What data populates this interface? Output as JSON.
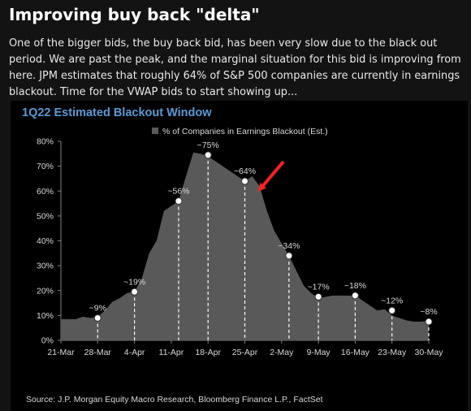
{
  "post": {
    "headline": "Improving buy back \"delta\"",
    "body": "One of the bigger bids, the buy back bid, has been very slow due to the black out period. We are past the peak, and the marginal situation for this bid is improving from here. JPM estimates that roughly 64% of S&P 500 companies are currently in earnings blackout. Time for the VWAP bids to start showing up..."
  },
  "chart_data": {
    "type": "area",
    "title": "1Q22 Estimated Blackout Window",
    "xlabel": "",
    "ylabel": "",
    "ylim": [
      0,
      80
    ],
    "grid": false,
    "legend_position": "top-center",
    "source": "Source: J.P. Morgan Equity Macro Research, Bloomberg Finance L.P., FactSet",
    "series": [
      {
        "name": "% of Companies in Earnings Blackout (Est.)",
        "color": "#595959",
        "values": [
          8.5,
          8.5,
          8.5,
          9.5,
          9.0,
          9.5,
          12,
          15.5,
          17,
          19,
          19.5,
          25,
          35,
          40,
          52,
          54,
          56,
          66,
          75.5,
          75,
          74,
          72,
          70,
          68,
          66,
          64,
          66,
          62,
          52,
          44,
          39,
          34,
          28,
          22,
          19,
          17,
          17.5,
          18,
          18,
          18,
          18,
          16,
          14,
          12,
          12.5,
          10,
          9,
          8,
          7.5,
          7.5,
          8
        ]
      }
    ],
    "x_tick_labels": [
      "21-Mar",
      "28-Mar",
      "4-Apr",
      "11-Apr",
      "18-Apr",
      "25-Apr",
      "2-May",
      "9-May",
      "16-May",
      "23-May",
      "30-May"
    ],
    "y_tick_labels": [
      "0%",
      "10%",
      "20%",
      "30%",
      "40%",
      "50%",
      "60%",
      "70%",
      "80%"
    ],
    "y_ticks": [
      0,
      10,
      20,
      30,
      40,
      50,
      60,
      70,
      80
    ],
    "markers": [
      {
        "label": "~9%",
        "index": 5,
        "value": 9
      },
      {
        "label": "~19%",
        "index": 10,
        "value": 19.5
      },
      {
        "label": "~56%",
        "index": 16,
        "value": 56
      },
      {
        "label": "~75%",
        "index": 20,
        "value": 74.5
      },
      {
        "label": "~64%",
        "index": 25,
        "value": 64
      },
      {
        "label": "~34%",
        "index": 31,
        "value": 34
      },
      {
        "label": "~17%",
        "index": 35,
        "value": 17.5
      },
      {
        "label": "~18%",
        "index": 40,
        "value": 18
      },
      {
        "label": "~12%",
        "index": 45,
        "value": 12
      },
      {
        "label": "~8%",
        "index": 50,
        "value": 7.5
      }
    ],
    "colors": {
      "area": "#595959",
      "marker_fill": "#ffffff",
      "marker_stroke": "#333333",
      "title": "#5b9bd5",
      "arrow": "#ff2020",
      "text": "#d9d9d9"
    },
    "annotation_arrow": {
      "points_to": "~64%"
    }
  }
}
